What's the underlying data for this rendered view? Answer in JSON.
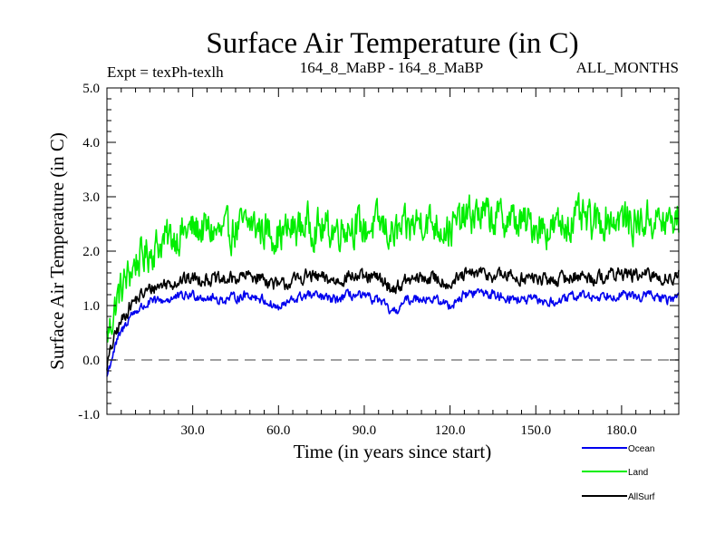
{
  "chart_data": {
    "type": "line",
    "title": "Surface Air Temperature (in C)",
    "subtitle_left": "Expt = texPh-texlh",
    "subtitle_center": "164_8_MaBP - 164_8_MaBP",
    "subtitle_right": "ALL_MONTHS",
    "xlabel": "Time (in years since start)",
    "ylabel": "Surface Air Temperature (in C)",
    "xlim": [
      0,
      200
    ],
    "ylim": [
      -1.0,
      5.0
    ],
    "xticks": [
      30,
      60,
      90,
      120,
      150,
      180
    ],
    "xtick_labels": [
      "30.0",
      "60.0",
      "90.0",
      "120.0",
      "150.0",
      "180.0"
    ],
    "yticks": [
      -1,
      0,
      1,
      2,
      3,
      4,
      5
    ],
    "ytick_labels": [
      "-1.0",
      "0.0",
      "1.0",
      "2.0",
      "3.0",
      "4.0",
      "5.0"
    ],
    "reference_line": {
      "y": 0.0,
      "style": "dashed"
    },
    "legend": [
      "Ocean",
      "Land",
      "AllSurf"
    ],
    "colors": {
      "Ocean": "#0000ee",
      "Land": "#00ee00",
      "AllSurf": "#000000",
      "reference": "#808080"
    },
    "series": [
      {
        "name": "Land",
        "x": [
          0,
          2,
          4,
          6,
          8,
          10,
          15,
          20,
          25,
          30,
          35,
          40,
          45,
          50,
          55,
          60,
          65,
          70,
          75,
          80,
          85,
          90,
          95,
          100,
          105,
          110,
          115,
          120,
          125,
          130,
          135,
          140,
          145,
          150,
          155,
          160,
          165,
          170,
          175,
          180,
          185,
          190,
          195,
          200
        ],
        "values": [
          0.4,
          0.8,
          1.2,
          1.4,
          1.6,
          1.8,
          2.0,
          2.2,
          2.3,
          2.4,
          2.4,
          2.3,
          2.4,
          2.5,
          2.4,
          2.3,
          2.4,
          2.5,
          2.4,
          2.4,
          2.5,
          2.4,
          2.5,
          2.3,
          2.4,
          2.6,
          2.5,
          2.4,
          2.6,
          2.7,
          2.6,
          2.6,
          2.5,
          2.5,
          2.4,
          2.5,
          2.6,
          2.5,
          2.6,
          2.6,
          2.5,
          2.6,
          2.5,
          2.6
        ],
        "noise": 0.55
      },
      {
        "name": "AllSurf",
        "x": [
          0,
          2,
          4,
          6,
          8,
          10,
          15,
          20,
          25,
          30,
          35,
          40,
          45,
          50,
          55,
          60,
          65,
          70,
          75,
          80,
          85,
          90,
          95,
          100,
          105,
          110,
          115,
          120,
          125,
          130,
          135,
          140,
          145,
          150,
          155,
          160,
          165,
          170,
          175,
          180,
          185,
          190,
          195,
          200
        ],
        "values": [
          -0.1,
          0.3,
          0.6,
          0.8,
          1.0,
          1.1,
          1.3,
          1.4,
          1.45,
          1.5,
          1.5,
          1.45,
          1.5,
          1.55,
          1.5,
          1.35,
          1.45,
          1.55,
          1.5,
          1.45,
          1.55,
          1.5,
          1.5,
          1.3,
          1.45,
          1.5,
          1.5,
          1.4,
          1.55,
          1.6,
          1.55,
          1.55,
          1.5,
          1.5,
          1.45,
          1.5,
          1.55,
          1.5,
          1.55,
          1.6,
          1.55,
          1.55,
          1.5,
          1.55
        ],
        "noise": 0.2
      },
      {
        "name": "Ocean",
        "x": [
          0,
          2,
          4,
          6,
          8,
          10,
          15,
          20,
          25,
          30,
          35,
          40,
          45,
          50,
          55,
          60,
          65,
          70,
          75,
          80,
          85,
          90,
          95,
          100,
          105,
          110,
          115,
          120,
          125,
          130,
          135,
          140,
          145,
          150,
          155,
          160,
          165,
          170,
          175,
          180,
          185,
          190,
          195,
          200
        ],
        "values": [
          -0.3,
          0.1,
          0.4,
          0.6,
          0.8,
          0.9,
          1.05,
          1.1,
          1.15,
          1.2,
          1.15,
          1.1,
          1.15,
          1.2,
          1.1,
          0.95,
          1.1,
          1.2,
          1.15,
          1.1,
          1.2,
          1.15,
          1.1,
          0.85,
          1.1,
          1.15,
          1.1,
          1.0,
          1.2,
          1.25,
          1.2,
          1.15,
          1.1,
          1.1,
          1.05,
          1.1,
          1.2,
          1.15,
          1.2,
          1.2,
          1.15,
          1.2,
          1.1,
          1.15
        ],
        "noise": 0.14
      }
    ]
  }
}
